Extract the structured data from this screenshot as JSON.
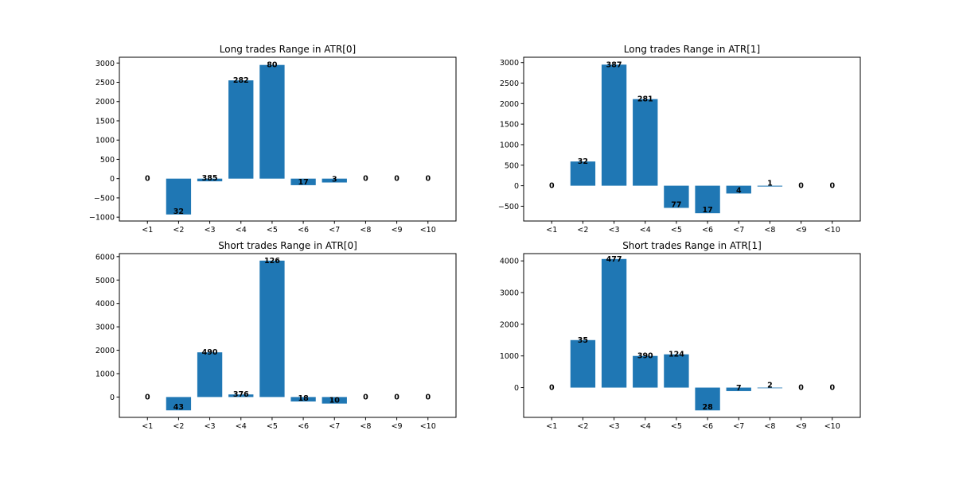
{
  "chart_data": [
    {
      "type": "bar",
      "title": "Long trades Range in ATR[0]",
      "categories": [
        "<1",
        "<2",
        "<3",
        "<4",
        "<5",
        "<6",
        "<7",
        "<8",
        "<9",
        "<10"
      ],
      "values": [
        0,
        -930,
        -70,
        2550,
        2950,
        -170,
        -100,
        0,
        0,
        0
      ],
      "data_labels": [
        "0",
        "32",
        "385",
        "282",
        "80",
        "17",
        "3",
        "0",
        "0",
        "0"
      ],
      "yticks": [
        -1000,
        -500,
        0,
        500,
        1000,
        1500,
        2000,
        2500,
        3000
      ],
      "ylim": [
        -1100,
        3150
      ],
      "bar_color": "#1f77b4"
    },
    {
      "type": "bar",
      "title": "Long trades Range in ATR[1]",
      "categories": [
        "<1",
        "<2",
        "<3",
        "<4",
        "<5",
        "<6",
        "<7",
        "<8",
        "<9",
        "<10"
      ],
      "values": [
        0,
        590,
        2950,
        2110,
        -540,
        -670,
        -190,
        -20,
        0,
        0
      ],
      "data_labels": [
        "0",
        "32",
        "387",
        "281",
        "77",
        "17",
        "4",
        "1",
        "0",
        "0"
      ],
      "yticks": [
        -500,
        0,
        500,
        1000,
        1500,
        2000,
        2500,
        3000
      ],
      "ylim": [
        -860,
        3130
      ],
      "bar_color": "#1f77b4"
    },
    {
      "type": "bar",
      "title": "Short trades Range in ATR[0]",
      "categories": [
        "<1",
        "<2",
        "<3",
        "<4",
        "<5",
        "<6",
        "<7",
        "<8",
        "<9",
        "<10"
      ],
      "values": [
        0,
        -570,
        1910,
        110,
        5830,
        -190,
        -280,
        0,
        0,
        0
      ],
      "data_labels": [
        "0",
        "43",
        "490",
        "376",
        "126",
        "18",
        "10",
        "0",
        "0",
        "0"
      ],
      "yticks": [
        0,
        1000,
        2000,
        3000,
        4000,
        5000,
        6000
      ],
      "ylim": [
        -870,
        6130
      ],
      "bar_color": "#1f77b4"
    },
    {
      "type": "bar",
      "title": "Short trades Range in ATR[1]",
      "categories": [
        "<1",
        "<2",
        "<3",
        "<4",
        "<5",
        "<6",
        "<7",
        "<8",
        "<9",
        "<10"
      ],
      "values": [
        0,
        1500,
        4060,
        1000,
        1050,
        -720,
        -110,
        -20,
        0,
        0
      ],
      "data_labels": [
        "0",
        "35",
        "477",
        "390",
        "124",
        "28",
        "7",
        "2",
        "0",
        "0"
      ],
      "yticks": [
        0,
        1000,
        2000,
        3000,
        4000
      ],
      "ylim": [
        -940,
        4230
      ],
      "bar_color": "#1f77b4"
    }
  ]
}
